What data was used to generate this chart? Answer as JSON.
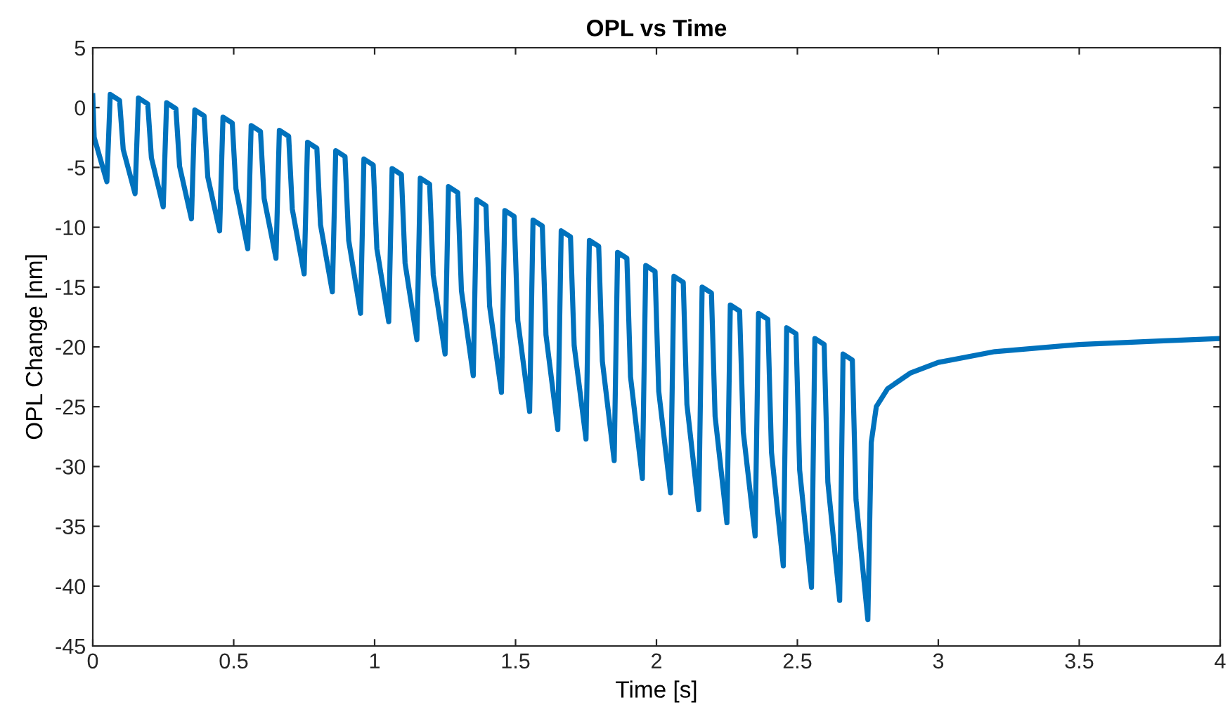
{
  "chart_data": {
    "type": "line",
    "title": "OPL vs Time",
    "xlabel": "Time [s]",
    "ylabel": "OPL Change [nm]",
    "xlim": [
      0,
      4
    ],
    "xticks": [
      0,
      0.5,
      1,
      1.5,
      2,
      2.5,
      3,
      3.5,
      4
    ],
    "ylim": [
      -45,
      5
    ],
    "yticks": [
      -45,
      -40,
      -35,
      -30,
      -25,
      -20,
      -15,
      -10,
      -5,
      0,
      5
    ],
    "grid": false,
    "marker": "none",
    "line_style": "solid",
    "series": [
      {
        "color": "#0072bd",
        "x": [
          0,
          0.005,
          0.05,
          0.062,
          0.095,
          0.108,
          0.15,
          0.162,
          0.195,
          0.208,
          0.25,
          0.262,
          0.295,
          0.308,
          0.35,
          0.362,
          0.395,
          0.408,
          0.45,
          0.462,
          0.495,
          0.508,
          0.55,
          0.562,
          0.595,
          0.608,
          0.65,
          0.662,
          0.695,
          0.708,
          0.75,
          0.762,
          0.795,
          0.808,
          0.85,
          0.862,
          0.895,
          0.908,
          0.95,
          0.962,
          0.995,
          1.008,
          1.05,
          1.062,
          1.095,
          1.108,
          1.15,
          1.162,
          1.195,
          1.208,
          1.25,
          1.262,
          1.295,
          1.308,
          1.35,
          1.362,
          1.395,
          1.408,
          1.45,
          1.462,
          1.495,
          1.508,
          1.55,
          1.562,
          1.595,
          1.608,
          1.65,
          1.662,
          1.695,
          1.708,
          1.75,
          1.762,
          1.795,
          1.808,
          1.85,
          1.862,
          1.895,
          1.908,
          1.95,
          1.962,
          1.995,
          2.008,
          2.05,
          2.062,
          2.095,
          2.108,
          2.15,
          2.162,
          2.195,
          2.208,
          2.25,
          2.262,
          2.295,
          2.308,
          2.35,
          2.362,
          2.395,
          2.408,
          2.45,
          2.462,
          2.495,
          2.508,
          2.55,
          2.562,
          2.595,
          2.608,
          2.65,
          2.662,
          2.695,
          2.708,
          2.75,
          2.762,
          2.78,
          2.82,
          2.9,
          3.0,
          3.2,
          3.5,
          3.8,
          4.0
        ],
        "values": [
          1.0,
          -2.5,
          -6.2,
          1.1,
          0.6,
          -3.5,
          -7.2,
          0.8,
          0.3,
          -4.2,
          -8.3,
          0.4,
          -0.1,
          -4.9,
          -9.3,
          -0.2,
          -0.7,
          -5.8,
          -10.3,
          -0.8,
          -1.3,
          -6.8,
          -11.8,
          -1.5,
          -2.0,
          -7.6,
          -12.6,
          -1.9,
          -2.4,
          -8.5,
          -13.9,
          -2.9,
          -3.4,
          -9.8,
          -15.4,
          -3.6,
          -4.1,
          -11.1,
          -17.2,
          -4.3,
          -4.8,
          -11.8,
          -17.9,
          -5.1,
          -5.6,
          -13.0,
          -19.4,
          -5.9,
          -6.4,
          -14.0,
          -20.6,
          -6.6,
          -7.1,
          -15.3,
          -22.4,
          -7.7,
          -8.2,
          -16.6,
          -23.8,
          -8.6,
          -9.1,
          -17.8,
          -25.4,
          -9.4,
          -9.9,
          -19.0,
          -26.9,
          -10.3,
          -10.8,
          -19.9,
          -27.7,
          -11.1,
          -11.6,
          -21.2,
          -29.5,
          -12.1,
          -12.6,
          -22.5,
          -31.0,
          -13.2,
          -13.7,
          -23.7,
          -32.2,
          -14.1,
          -14.6,
          -24.8,
          -33.6,
          -15.0,
          -15.5,
          -25.8,
          -34.7,
          -16.5,
          -17.0,
          -27.1,
          -35.8,
          -17.2,
          -17.7,
          -28.8,
          -38.3,
          -18.4,
          -18.9,
          -30.3,
          -40.1,
          -19.3,
          -19.8,
          -31.3,
          -41.2,
          -20.6,
          -21.1,
          -32.8,
          -42.8,
          -28.0,
          -25.0,
          -23.5,
          -22.2,
          -21.3,
          -20.4,
          -19.8,
          -19.5,
          -19.3
        ]
      }
    ]
  }
}
